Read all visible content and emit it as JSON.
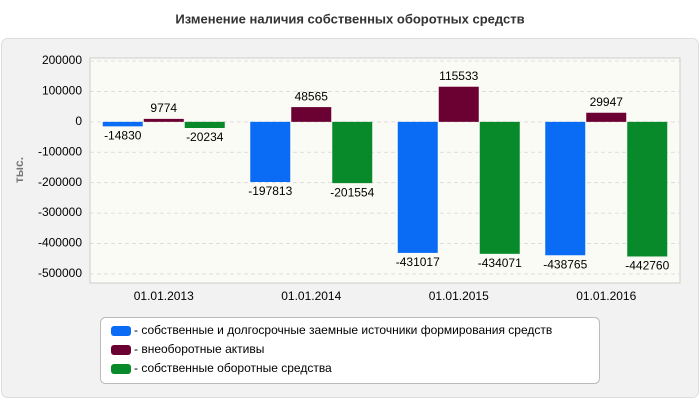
{
  "chart_data": {
    "type": "bar",
    "title": "Изменение наличия собственных оборотных средств",
    "ylabel": "тыс.",
    "categories": [
      "01.01.2013",
      "01.01.2014",
      "01.01.2015",
      "01.01.2016"
    ],
    "series": [
      {
        "name": "- собственные и долгосрочные заемные источники формирования средств",
        "color": "#0a6cf5",
        "values": [
          -14830,
          -197813,
          -431017,
          -438765
        ]
      },
      {
        "name": "- внеоборотные активы",
        "color": "#6b0032",
        "values": [
          9774,
          48565,
          115533,
          29947
        ]
      },
      {
        "name": "- собственные оборотные средства",
        "color": "#088a2a",
        "values": [
          -20234,
          -201554,
          -434071,
          -442760
        ]
      }
    ],
    "ylim": [
      -530000,
      210000
    ],
    "yticks": [
      200000,
      100000,
      0,
      -100000,
      -200000,
      -300000,
      -400000,
      -500000
    ],
    "grid": true
  }
}
